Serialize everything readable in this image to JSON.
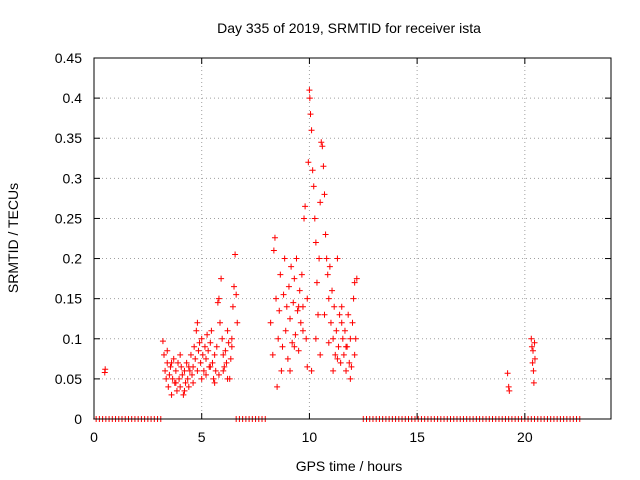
{
  "chart_data": {
    "type": "scatter",
    "title": "Day 335 of 2019, SRMTID for receiver ista",
    "xlabel": "GPS time / hours",
    "ylabel": "SRMTID / TECUs",
    "xlim": [
      0,
      24
    ],
    "ylim": [
      0,
      0.45
    ],
    "x_ticks": [
      0,
      5,
      10,
      15,
      20
    ],
    "y_ticks": [
      0,
      0.05,
      0.1,
      0.15,
      0.2,
      0.25,
      0.3,
      0.35,
      0.4,
      0.45
    ],
    "x_tick_labels": [
      "0",
      "5",
      "10",
      "15",
      "20"
    ],
    "y_tick_labels": [
      "0",
      "0.05",
      "0.1",
      "0.15",
      "0.2",
      "0.25",
      "0.3",
      "0.35",
      "0.4",
      "0.45"
    ],
    "grid": true,
    "marker": "plus",
    "marker_color": "#ff0000",
    "series": [
      {
        "points": [
          [
            0.1,
            0
          ],
          [
            0.25,
            0
          ],
          [
            0.4,
            0
          ],
          [
            0.55,
            0
          ],
          [
            0.7,
            0
          ],
          [
            0.85,
            0
          ],
          [
            1.0,
            0
          ],
          [
            1.15,
            0
          ],
          [
            1.3,
            0
          ],
          [
            1.45,
            0
          ],
          [
            1.6,
            0
          ],
          [
            1.75,
            0
          ],
          [
            1.9,
            0
          ],
          [
            2.05,
            0
          ],
          [
            2.2,
            0
          ],
          [
            2.35,
            0
          ],
          [
            2.5,
            0
          ],
          [
            2.65,
            0
          ],
          [
            2.8,
            0
          ],
          [
            2.95,
            0
          ],
          [
            3.1,
            0
          ],
          [
            6.6,
            0
          ],
          [
            6.75,
            0
          ],
          [
            6.9,
            0
          ],
          [
            7.05,
            0
          ],
          [
            7.2,
            0
          ],
          [
            7.35,
            0
          ],
          [
            7.5,
            0
          ],
          [
            7.65,
            0
          ],
          [
            7.8,
            0
          ],
          [
            7.95,
            0
          ],
          [
            12.5,
            0
          ],
          [
            12.65,
            0
          ],
          [
            12.8,
            0
          ],
          [
            12.95,
            0
          ],
          [
            13.1,
            0
          ],
          [
            13.25,
            0
          ],
          [
            13.4,
            0
          ],
          [
            13.55,
            0
          ],
          [
            13.7,
            0
          ],
          [
            13.85,
            0
          ],
          [
            14.0,
            0
          ],
          [
            14.15,
            0
          ],
          [
            14.3,
            0
          ],
          [
            14.45,
            0
          ],
          [
            14.6,
            0
          ],
          [
            14.75,
            0
          ],
          [
            14.9,
            0
          ],
          [
            15.05,
            0
          ],
          [
            15.2,
            0
          ],
          [
            15.35,
            0
          ],
          [
            15.5,
            0
          ],
          [
            15.65,
            0
          ],
          [
            15.8,
            0
          ],
          [
            15.95,
            0
          ],
          [
            16.1,
            0
          ],
          [
            16.25,
            0
          ],
          [
            16.4,
            0
          ],
          [
            16.55,
            0
          ],
          [
            16.7,
            0
          ],
          [
            16.85,
            0
          ],
          [
            17.0,
            0
          ],
          [
            17.15,
            0
          ],
          [
            17.3,
            0
          ],
          [
            17.45,
            0
          ],
          [
            17.6,
            0
          ],
          [
            17.75,
            0
          ],
          [
            17.9,
            0
          ],
          [
            18.05,
            0
          ],
          [
            18.2,
            0
          ],
          [
            18.35,
            0
          ],
          [
            18.5,
            0
          ],
          [
            18.65,
            0
          ],
          [
            18.8,
            0
          ],
          [
            18.95,
            0
          ],
          [
            19.1,
            0
          ],
          [
            19.25,
            0
          ],
          [
            19.4,
            0
          ],
          [
            19.55,
            0
          ],
          [
            19.7,
            0
          ],
          [
            19.85,
            0
          ],
          [
            20.0,
            0
          ],
          [
            20.15,
            0
          ],
          [
            20.3,
            0
          ],
          [
            20.45,
            0
          ],
          [
            20.6,
            0
          ],
          [
            20.75,
            0
          ],
          [
            20.9,
            0
          ],
          [
            21.05,
            0
          ],
          [
            21.2,
            0
          ],
          [
            21.35,
            0
          ],
          [
            21.5,
            0
          ],
          [
            21.65,
            0
          ],
          [
            21.8,
            0
          ],
          [
            21.95,
            0
          ],
          [
            22.1,
            0
          ],
          [
            22.25,
            0
          ],
          [
            22.4,
            0
          ],
          [
            22.55,
            0
          ],
          [
            0.5,
            0.058
          ],
          [
            0.52,
            0.062
          ],
          [
            3.2,
            0.097
          ],
          [
            3.25,
            0.08
          ],
          [
            3.3,
            0.06
          ],
          [
            3.35,
            0.05
          ],
          [
            3.4,
            0.07
          ],
          [
            3.45,
            0.04
          ],
          [
            3.5,
            0.055
          ],
          [
            3.55,
            0.065
          ],
          [
            3.6,
            0.03
          ],
          [
            3.65,
            0.05
          ],
          [
            3.7,
            0.075
          ],
          [
            3.75,
            0.045
          ],
          [
            3.8,
            0.06
          ],
          [
            3.85,
            0.035
          ],
          [
            3.9,
            0.07
          ],
          [
            3.95,
            0.05
          ],
          [
            4.0,
            0.04
          ],
          [
            4.05,
            0.065
          ],
          [
            4.1,
            0.055
          ],
          [
            4.15,
            0.03
          ],
          [
            4.2,
            0.06
          ],
          [
            4.25,
            0.045
          ],
          [
            4.3,
            0.07
          ],
          [
            4.35,
            0.05
          ],
          [
            4.4,
            0.04
          ],
          [
            4.45,
            0.06
          ],
          [
            4.5,
            0.08
          ],
          [
            4.55,
            0.055
          ],
          [
            4.6,
            0.065
          ],
          [
            4.65,
            0.09
          ],
          [
            4.7,
            0.075
          ],
          [
            4.75,
            0.11
          ],
          [
            4.8,
            0.12
          ],
          [
            4.85,
            0.085
          ],
          [
            4.9,
            0.095
          ],
          [
            4.95,
            0.07
          ],
          [
            5.0,
            0.1
          ],
          [
            5.05,
            0.08
          ],
          [
            5.1,
            0.06
          ],
          [
            5.15,
            0.09
          ],
          [
            5.2,
            0.075
          ],
          [
            5.25,
            0.105
          ],
          [
            5.3,
            0.085
          ],
          [
            5.35,
            0.065
          ],
          [
            5.4,
            0.095
          ],
          [
            5.45,
            0.11
          ],
          [
            5.5,
            0.07
          ],
          [
            5.55,
            0.05
          ],
          [
            5.6,
            0.08
          ],
          [
            5.65,
            0.06
          ],
          [
            5.7,
            0.09
          ],
          [
            5.75,
            0.145
          ],
          [
            5.8,
            0.15
          ],
          [
            5.85,
            0.12
          ],
          [
            5.9,
            0.175
          ],
          [
            5.95,
            0.1
          ],
          [
            6.0,
            0.08
          ],
          [
            6.05,
            0.065
          ],
          [
            6.1,
            0.085
          ],
          [
            6.15,
            0.07
          ],
          [
            6.2,
            0.11
          ],
          [
            6.25,
            0.095
          ],
          [
            6.3,
            0.05
          ],
          [
            6.35,
            0.075
          ],
          [
            6.4,
            0.09
          ],
          [
            6.45,
            0.14
          ],
          [
            6.5,
            0.165
          ],
          [
            6.55,
            0.205
          ],
          [
            6.6,
            0.155
          ],
          [
            6.65,
            0.12
          ],
          [
            3.4,
            0.085
          ],
          [
            3.6,
            0.07
          ],
          [
            3.8,
            0.045
          ],
          [
            4.0,
            0.08
          ],
          [
            4.2,
            0.035
          ],
          [
            4.4,
            0.065
          ],
          [
            4.6,
            0.045
          ],
          [
            4.8,
            0.06
          ],
          [
            5.0,
            0.05
          ],
          [
            5.2,
            0.055
          ],
          [
            5.4,
            0.065
          ],
          [
            5.6,
            0.045
          ],
          [
            5.8,
            0.055
          ],
          [
            6.0,
            0.06
          ],
          [
            6.2,
            0.05
          ],
          [
            6.4,
            0.1
          ],
          [
            8.2,
            0.12
          ],
          [
            8.3,
            0.08
          ],
          [
            8.35,
            0.21
          ],
          [
            8.4,
            0.226
          ],
          [
            8.45,
            0.15
          ],
          [
            8.5,
            0.04
          ],
          [
            8.55,
            0.1
          ],
          [
            8.6,
            0.135
          ],
          [
            8.65,
            0.18
          ],
          [
            8.7,
            0.06
          ],
          [
            8.75,
            0.09
          ],
          [
            8.8,
            0.155
          ],
          [
            8.85,
            0.2
          ],
          [
            8.9,
            0.11
          ],
          [
            8.95,
            0.14
          ],
          [
            9.0,
            0.075
          ],
          [
            9.05,
            0.165
          ],
          [
            9.1,
            0.125
          ],
          [
            9.15,
            0.19
          ],
          [
            9.2,
            0.095
          ],
          [
            9.25,
            0.145
          ],
          [
            9.3,
            0.175
          ],
          [
            9.35,
            0.105
          ],
          [
            9.4,
            0.2
          ],
          [
            9.45,
            0.135
          ],
          [
            9.5,
            0.085
          ],
          [
            9.55,
            0.16
          ],
          [
            9.6,
            0.12
          ],
          [
            9.65,
            0.18
          ],
          [
            9.7,
            0.14
          ],
          [
            9.75,
            0.25
          ],
          [
            9.8,
            0.265
          ],
          [
            9.85,
            0.1
          ],
          [
            9.9,
            0.15
          ],
          [
            9.95,
            0.32
          ],
          [
            10.0,
            0.41
          ],
          [
            10.02,
            0.4
          ],
          [
            10.05,
            0.38
          ],
          [
            10.1,
            0.36
          ],
          [
            10.15,
            0.31
          ],
          [
            10.2,
            0.29
          ],
          [
            10.25,
            0.25
          ],
          [
            10.3,
            0.22
          ],
          [
            10.35,
            0.17
          ],
          [
            10.4,
            0.13
          ],
          [
            10.45,
            0.2
          ],
          [
            10.5,
            0.27
          ],
          [
            10.55,
            0.345
          ],
          [
            10.6,
            0.34
          ],
          [
            10.65,
            0.315
          ],
          [
            10.7,
            0.28
          ],
          [
            10.75,
            0.23
          ],
          [
            10.8,
            0.2
          ],
          [
            10.85,
            0.18
          ],
          [
            10.9,
            0.15
          ],
          [
            10.95,
            0.19
          ],
          [
            11.0,
            0.12
          ],
          [
            11.05,
            0.16
          ],
          [
            11.1,
            0.1
          ],
          [
            11.15,
            0.14
          ],
          [
            11.2,
            0.08
          ],
          [
            11.25,
            0.11
          ],
          [
            11.3,
            0.2
          ],
          [
            11.35,
            0.09
          ],
          [
            11.4,
            0.13
          ],
          [
            11.45,
            0.07
          ],
          [
            11.5,
            0.12
          ],
          [
            11.55,
            0.1
          ],
          [
            11.6,
            0.08
          ],
          [
            11.65,
            0.11
          ],
          [
            11.7,
            0.06
          ],
          [
            11.75,
            0.09
          ],
          [
            11.8,
            0.13
          ],
          [
            11.85,
            0.07
          ],
          [
            11.9,
            0.1
          ],
          [
            11.95,
            0.065
          ],
          [
            12.0,
            0.12
          ],
          [
            12.05,
            0.15
          ],
          [
            12.1,
            0.17
          ],
          [
            12.15,
            0.1
          ],
          [
            12.2,
            0.175
          ],
          [
            9.1,
            0.06
          ],
          [
            9.3,
            0.09
          ],
          [
            9.5,
            0.14
          ],
          [
            9.7,
            0.11
          ],
          [
            9.9,
            0.065
          ],
          [
            10.1,
            0.06
          ],
          [
            10.3,
            0.1
          ],
          [
            10.5,
            0.08
          ],
          [
            10.7,
            0.13
          ],
          [
            10.9,
            0.095
          ],
          [
            11.1,
            0.06
          ],
          [
            11.3,
            0.075
          ],
          [
            11.5,
            0.14
          ],
          [
            11.7,
            0.09
          ],
          [
            11.9,
            0.05
          ],
          [
            12.1,
            0.08
          ],
          [
            19.2,
            0.057
          ],
          [
            19.25,
            0.04
          ],
          [
            19.28,
            0.035
          ],
          [
            20.3,
            0.1
          ],
          [
            20.33,
            0.09
          ],
          [
            20.36,
            0.07
          ],
          [
            20.38,
            0.085
          ],
          [
            20.4,
            0.06
          ],
          [
            20.42,
            0.045
          ],
          [
            20.45,
            0.095
          ],
          [
            20.47,
            0.075
          ]
        ]
      }
    ]
  }
}
